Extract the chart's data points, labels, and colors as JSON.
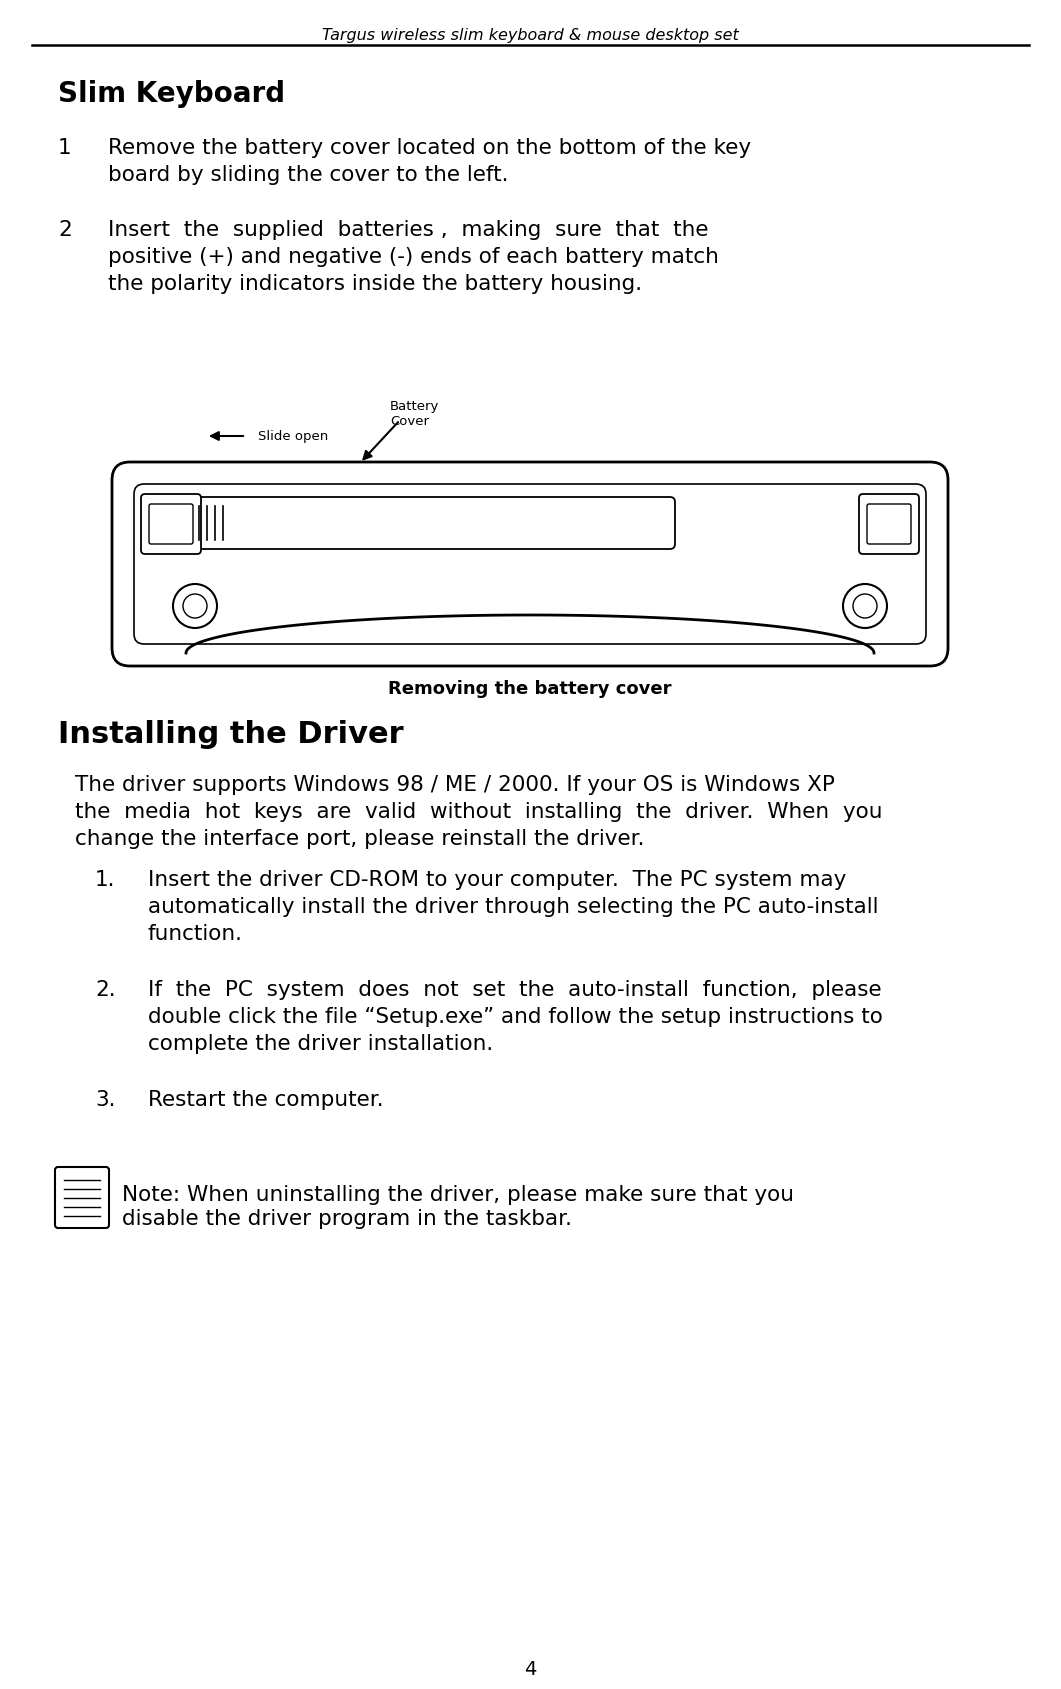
{
  "bg_color": "#ffffff",
  "header_text": "Targus wireless slim keyboard & mouse desktop set",
  "header_font_size": 11.5,
  "title_text": "Slim Keyboard",
  "title_font_size": 20,
  "body_font_size": 15.5,
  "small_font_size": 9.5,
  "removing_caption": "Removing the battery cover",
  "removing_font_size": 13,
  "section2_title": "Installing the Driver",
  "section2_title_font_size": 22,
  "note_text": "Note: When uninstalling the driver, please make sure that you\ndisable the driver program in the taskbar.",
  "page_num": "4",
  "font_color": "#000000",
  "slide_open_label": "Slide open",
  "battery_cover_label": "Battery\nCover"
}
